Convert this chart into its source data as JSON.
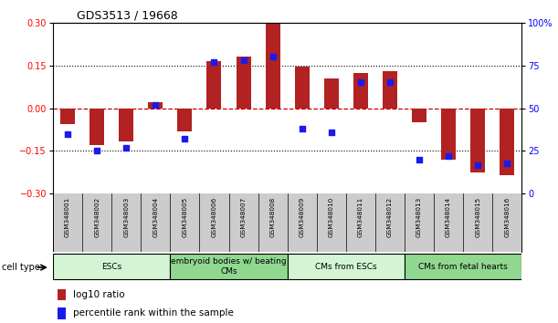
{
  "title": "GDS3513 / 19668",
  "samples": [
    "GSM348001",
    "GSM348002",
    "GSM348003",
    "GSM348004",
    "GSM348005",
    "GSM348006",
    "GSM348007",
    "GSM348008",
    "GSM348009",
    "GSM348010",
    "GSM348011",
    "GSM348012",
    "GSM348013",
    "GSM348014",
    "GSM348015",
    "GSM348016"
  ],
  "log10_ratio": [
    -0.055,
    -0.13,
    -0.115,
    0.02,
    -0.08,
    0.165,
    0.18,
    0.295,
    0.145,
    0.105,
    0.125,
    0.13,
    -0.05,
    -0.18,
    -0.225,
    -0.235
  ],
  "percentile_rank": [
    35,
    25,
    27,
    52,
    32,
    77,
    78,
    80,
    38,
    36,
    65,
    65,
    20,
    22,
    17,
    18
  ],
  "bar_color": "#b22222",
  "dot_color": "#1a1aee",
  "ylim": [
    -0.3,
    0.3
  ],
  "yticks_left": [
    -0.3,
    -0.15,
    0.0,
    0.15,
    0.3
  ],
  "yticks_right": [
    0,
    25,
    50,
    75,
    100
  ],
  "cell_type_groups": [
    {
      "label": "ESCs",
      "start": 0,
      "end": 4,
      "color": "#d4f5d4"
    },
    {
      "label": "embryoid bodies w/ beating\nCMs",
      "start": 4,
      "end": 8,
      "color": "#90d890"
    },
    {
      "label": "CMs from ESCs",
      "start": 8,
      "end": 12,
      "color": "#d4f5d4"
    },
    {
      "label": "CMs from fetal hearts",
      "start": 12,
      "end": 16,
      "color": "#90d890"
    }
  ],
  "cell_type_label": "cell type",
  "legend_red": "log10 ratio",
  "legend_blue": "percentile rank within the sample",
  "background_color": "#ffffff",
  "zero_line_color": "#cc0000",
  "title_fontsize": 9,
  "tick_fontsize": 7,
  "label_fontsize": 5.2,
  "ct_fontsize": 6.5,
  "legend_fontsize": 7.5
}
